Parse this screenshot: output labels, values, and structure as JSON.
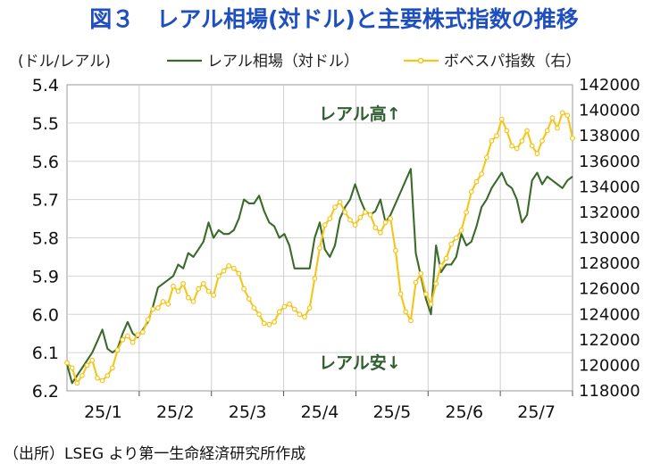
{
  "chart_data": {
    "type": "line",
    "title": "図３　レアル相場(対ドル)と主要株式指数の推移",
    "y_left_label": "(ドル/レアル)",
    "x_ticks": [
      "25/1",
      "25/2",
      "25/3",
      "25/4",
      "25/5",
      "25/6",
      "25/7"
    ],
    "y_left": {
      "min": 5.4,
      "max": 6.2,
      "reversed": true,
      "ticks": [
        "5.4",
        "5.5",
        "5.6",
        "5.7",
        "5.8",
        "5.9",
        "6.0",
        "6.1",
        "6.2"
      ]
    },
    "y_right": {
      "min": 118000,
      "max": 142000,
      "ticks": [
        "142000",
        "140000",
        "138000",
        "136000",
        "134000",
        "132000",
        "130000",
        "128000",
        "126000",
        "124000",
        "122000",
        "120000",
        "118000"
      ]
    },
    "x_range": [
      0,
      200
    ],
    "series": [
      {
        "name": "レアル相場（対ドル）",
        "axis": "left",
        "color": "#3b6b2a",
        "points": [
          [
            0,
            6.13
          ],
          [
            2,
            6.18
          ],
          [
            4,
            6.16
          ],
          [
            6,
            6.14
          ],
          [
            8,
            6.12
          ],
          [
            10,
            6.1
          ],
          [
            12,
            6.07
          ],
          [
            14,
            6.04
          ],
          [
            16,
            6.09
          ],
          [
            18,
            6.1
          ],
          [
            20,
            6.09
          ],
          [
            22,
            6.05
          ],
          [
            24,
            6.02
          ],
          [
            26,
            6.05
          ],
          [
            28,
            6.06
          ],
          [
            30,
            6.04
          ],
          [
            32,
            6.02
          ],
          [
            34,
            5.98
          ],
          [
            36,
            5.93
          ],
          [
            38,
            5.92
          ],
          [
            40,
            5.91
          ],
          [
            42,
            5.9
          ],
          [
            44,
            5.87
          ],
          [
            46,
            5.88
          ],
          [
            48,
            5.84
          ],
          [
            50,
            5.85
          ],
          [
            52,
            5.83
          ],
          [
            54,
            5.81
          ],
          [
            56,
            5.76
          ],
          [
            58,
            5.8
          ],
          [
            60,
            5.78
          ],
          [
            62,
            5.79
          ],
          [
            64,
            5.79
          ],
          [
            66,
            5.78
          ],
          [
            68,
            5.75
          ],
          [
            70,
            5.7
          ],
          [
            72,
            5.71
          ],
          [
            74,
            5.71
          ],
          [
            76,
            5.69
          ],
          [
            78,
            5.73
          ],
          [
            80,
            5.76
          ],
          [
            82,
            5.77
          ],
          [
            84,
            5.8
          ],
          [
            86,
            5.79
          ],
          [
            88,
            5.82
          ],
          [
            90,
            5.88
          ],
          [
            92,
            5.88
          ],
          [
            94,
            5.88
          ],
          [
            96,
            5.88
          ],
          [
            98,
            5.8
          ],
          [
            100,
            5.76
          ],
          [
            102,
            5.83
          ],
          [
            104,
            5.85
          ],
          [
            106,
            5.82
          ],
          [
            108,
            5.75
          ],
          [
            110,
            5.72
          ],
          [
            112,
            5.7
          ],
          [
            114,
            5.66
          ],
          [
            116,
            5.7
          ],
          [
            118,
            5.73
          ],
          [
            120,
            5.74
          ],
          [
            122,
            5.73
          ],
          [
            124,
            5.7
          ],
          [
            126,
            5.76
          ],
          [
            128,
            5.74
          ],
          [
            130,
            5.71
          ],
          [
            132,
            5.68
          ],
          [
            134,
            5.65
          ],
          [
            136,
            5.62
          ],
          [
            138,
            5.84
          ],
          [
            140,
            5.9
          ],
          [
            142,
            5.96
          ],
          [
            144,
            6.0
          ],
          [
            146,
            5.82
          ],
          [
            148,
            5.89
          ],
          [
            150,
            5.87
          ],
          [
            152,
            5.87
          ],
          [
            154,
            5.85
          ],
          [
            156,
            5.79
          ],
          [
            158,
            5.82
          ],
          [
            160,
            5.81
          ],
          [
            162,
            5.77
          ],
          [
            164,
            5.72
          ],
          [
            166,
            5.7
          ],
          [
            168,
            5.67
          ],
          [
            170,
            5.65
          ],
          [
            172,
            5.63
          ],
          [
            174,
            5.66
          ],
          [
            176,
            5.67
          ],
          [
            178,
            5.7
          ],
          [
            180,
            5.76
          ],
          [
            182,
            5.74
          ],
          [
            184,
            5.65
          ],
          [
            186,
            5.63
          ],
          [
            188,
            5.66
          ],
          [
            190,
            5.64
          ],
          [
            192,
            5.65
          ],
          [
            194,
            5.66
          ],
          [
            196,
            5.67
          ],
          [
            198,
            5.65
          ],
          [
            200,
            5.64
          ]
        ]
      },
      {
        "name": "ボベスパ指数（右）",
        "axis": "right",
        "color": "#f5c518",
        "points": [
          [
            0,
            120200
          ],
          [
            2,
            119800
          ],
          [
            4,
            118600
          ],
          [
            6,
            119200
          ],
          [
            8,
            120000
          ],
          [
            10,
            120400
          ],
          [
            12,
            119000
          ],
          [
            14,
            118800
          ],
          [
            16,
            119200
          ],
          [
            18,
            119800
          ],
          [
            20,
            121200
          ],
          [
            22,
            122000
          ],
          [
            24,
            122300
          ],
          [
            26,
            121800
          ],
          [
            28,
            122400
          ],
          [
            30,
            122600
          ],
          [
            32,
            123600
          ],
          [
            34,
            124400
          ],
          [
            36,
            124500
          ],
          [
            38,
            125000
          ],
          [
            40,
            124800
          ],
          [
            42,
            126200
          ],
          [
            44,
            125800
          ],
          [
            46,
            126400
          ],
          [
            48,
            125300
          ],
          [
            50,
            125000
          ],
          [
            52,
            126000
          ],
          [
            54,
            126400
          ],
          [
            56,
            125800
          ],
          [
            58,
            125500
          ],
          [
            60,
            127000
          ],
          [
            62,
            127400
          ],
          [
            64,
            127800
          ],
          [
            66,
            127600
          ],
          [
            68,
            127200
          ],
          [
            70,
            126000
          ],
          [
            72,
            125200
          ],
          [
            74,
            124500
          ],
          [
            76,
            124000
          ],
          [
            78,
            123300
          ],
          [
            80,
            123200
          ],
          [
            82,
            123400
          ],
          [
            84,
            124200
          ],
          [
            86,
            124600
          ],
          [
            88,
            124800
          ],
          [
            90,
            124400
          ],
          [
            92,
            124000
          ],
          [
            94,
            123800
          ],
          [
            96,
            124500
          ],
          [
            98,
            126800
          ],
          [
            100,
            129200
          ],
          [
            102,
            131000
          ],
          [
            104,
            131500
          ],
          [
            106,
            132400
          ],
          [
            108,
            132800
          ],
          [
            110,
            132000
          ],
          [
            112,
            131400
          ],
          [
            114,
            131000
          ],
          [
            116,
            131600
          ],
          [
            118,
            132000
          ],
          [
            120,
            131800
          ],
          [
            122,
            130800
          ],
          [
            124,
            130400
          ],
          [
            126,
            131200
          ],
          [
            128,
            131500
          ],
          [
            130,
            129000
          ],
          [
            132,
            125600
          ],
          [
            134,
            124200
          ],
          [
            136,
            123500
          ],
          [
            138,
            126500
          ],
          [
            140,
            127200
          ],
          [
            142,
            125600
          ],
          [
            144,
            124800
          ],
          [
            146,
            126400
          ],
          [
            148,
            127800
          ],
          [
            150,
            128400
          ],
          [
            152,
            129500
          ],
          [
            154,
            130000
          ],
          [
            156,
            130600
          ],
          [
            158,
            132000
          ],
          [
            160,
            133600
          ],
          [
            162,
            134400
          ],
          [
            164,
            135000
          ],
          [
            166,
            136300
          ],
          [
            168,
            137600
          ],
          [
            170,
            138000
          ],
          [
            172,
            139300
          ],
          [
            174,
            138400
          ],
          [
            176,
            137200
          ],
          [
            178,
            137000
          ],
          [
            180,
            137600
          ],
          [
            182,
            138400
          ],
          [
            184,
            137200
          ],
          [
            186,
            136600
          ],
          [
            188,
            137600
          ],
          [
            190,
            138400
          ],
          [
            192,
            139400
          ],
          [
            194,
            138600
          ],
          [
            196,
            139800
          ],
          [
            198,
            139600
          ],
          [
            200,
            137800
          ]
        ]
      }
    ],
    "annotations": [
      "レアル高↑",
      "レアル安↓"
    ],
    "grid": "horizontal",
    "legend": "top"
  },
  "source": "（出所）LSEG より第一生命経済研究所作成"
}
